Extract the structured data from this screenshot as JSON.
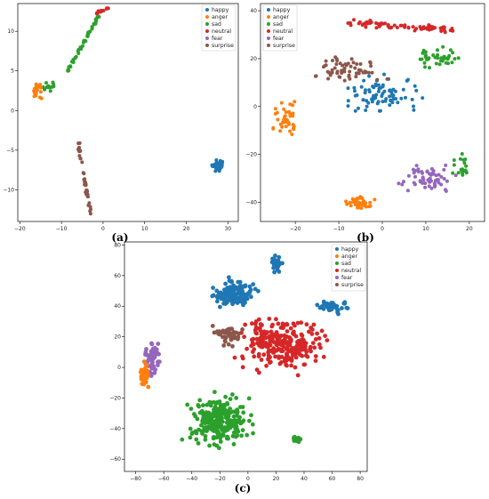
{
  "colors": {
    "happy": "#1f77b4",
    "anger": "#ff7f0e",
    "sad": "#2ca02c",
    "neutral": "#d62728",
    "fear": "#9467bd",
    "surprise": "#8c564b"
  },
  "chart_data": [
    {
      "panel": "(a)",
      "type": "scatter",
      "legend": [
        "happy",
        "anger",
        "sad",
        "neutral",
        "fear",
        "surprise"
      ],
      "legend_placement": "top-right",
      "xlim": [
        -20.5,
        32.5
      ],
      "ylim": [
        -14.0,
        13.5
      ],
      "xticks": [
        -20,
        -10,
        0,
        10,
        20,
        30
      ],
      "yticks": [
        -10,
        -5,
        0,
        5,
        10
      ],
      "clusters": [
        {
          "series": "neutral",
          "type": "line",
          "from": [
            -1.5,
            12.2
          ],
          "to": [
            1.5,
            13.0
          ],
          "n": 14,
          "spread": 0.3
        },
        {
          "series": "sad",
          "type": "line",
          "from": [
            -8.5,
            5.0
          ],
          "to": [
            -1.0,
            12.0
          ],
          "n": 50,
          "spread": 0.3
        },
        {
          "series": "sad",
          "type": "blob",
          "center": [
            -13.0,
            3.0
          ],
          "r": [
            2.0,
            0.8
          ],
          "n": 14
        },
        {
          "series": "anger",
          "type": "blob",
          "center": [
            -16.0,
            2.5
          ],
          "r": [
            1.6,
            1.2
          ],
          "n": 20
        },
        {
          "series": "surprise",
          "type": "line",
          "from": [
            -6.0,
            -4.0
          ],
          "to": [
            -3.0,
            -13.0
          ],
          "n": 40,
          "spread": 0.4
        },
        {
          "series": "happy",
          "type": "blob",
          "center": [
            27.5,
            -7.0
          ],
          "r": [
            2.0,
            0.9
          ],
          "n": 35
        }
      ]
    },
    {
      "panel": "(b)",
      "type": "scatter",
      "legend": [
        "happy",
        "anger",
        "sad",
        "neutral",
        "fear",
        "surprise"
      ],
      "legend_placement": "top-left",
      "xlim": [
        -28.0,
        23.5
      ],
      "ylim": [
        -48.0,
        43.0
      ],
      "xticks": [
        -20,
        -10,
        0,
        10,
        20
      ],
      "yticks": [
        -40,
        -20,
        0,
        20,
        40
      ],
      "clusters": [
        {
          "series": "neutral",
          "type": "line",
          "from": [
            -8.0,
            35.0
          ],
          "to": [
            16.0,
            32.0
          ],
          "n": 70,
          "spread": 2.0
        },
        {
          "series": "sad",
          "type": "blob",
          "center": [
            12.0,
            20.0
          ],
          "r": [
            7.0,
            6.0
          ],
          "n": 40
        },
        {
          "series": "happy",
          "type": "blob",
          "center": [
            0.0,
            5.0
          ],
          "r": [
            12.0,
            10.0
          ],
          "n": 80
        },
        {
          "series": "surprise",
          "type": "blob",
          "center": [
            -8.0,
            15.0
          ],
          "r": [
            10.0,
            8.0
          ],
          "n": 60
        },
        {
          "series": "anger",
          "type": "blob",
          "center": [
            -22.0,
            -5.0
          ],
          "r": [
            4.0,
            10.0
          ],
          "n": 40
        },
        {
          "series": "anger",
          "type": "blob",
          "center": [
            -5.0,
            -40.0
          ],
          "r": [
            5.0,
            4.0
          ],
          "n": 40
        },
        {
          "series": "fear",
          "type": "blob",
          "center": [
            10.0,
            -30.0
          ],
          "r": [
            8.0,
            7.0
          ],
          "n": 60
        },
        {
          "series": "sad",
          "type": "blob",
          "center": [
            18.0,
            -25.0
          ],
          "r": [
            3.0,
            6.0
          ],
          "n": 20
        }
      ]
    },
    {
      "panel": "(c)",
      "type": "scatter",
      "legend": [
        "happy",
        "anger",
        "sad",
        "neutral",
        "fear",
        "surprise"
      ],
      "legend_placement": "top-right",
      "xlim": [
        -88.0,
        85.0
      ],
      "ylim": [
        -68.0,
        82.0
      ],
      "xticks": [
        -80,
        -60,
        -40,
        -20,
        0,
        20,
        40,
        60,
        80
      ],
      "yticks": [
        -60,
        -40,
        -20,
        0,
        20,
        40,
        60,
        80
      ],
      "clusters": [
        {
          "series": "happy",
          "type": "blob",
          "center": [
            -10.0,
            48.0
          ],
          "r": [
            22.0,
            12.0
          ],
          "n": 140
        },
        {
          "series": "happy",
          "type": "blob",
          "center": [
            20.0,
            68.0
          ],
          "r": [
            5.0,
            8.0
          ],
          "n": 30
        },
        {
          "series": "happy",
          "type": "blob",
          "center": [
            60.0,
            40.0
          ],
          "r": [
            15.0,
            6.0
          ],
          "n": 40
        },
        {
          "series": "neutral",
          "type": "blob",
          "center": [
            25.0,
            15.0
          ],
          "r": [
            40.0,
            22.0
          ],
          "n": 260
        },
        {
          "series": "surprise",
          "type": "blob",
          "center": [
            -15.0,
            22.0
          ],
          "r": [
            15.0,
            10.0
          ],
          "n": 40
        },
        {
          "series": "sad",
          "type": "blob",
          "center": [
            -20.0,
            -35.0
          ],
          "r": [
            30.0,
            22.0
          ],
          "n": 260
        },
        {
          "series": "sad",
          "type": "blob",
          "center": [
            35.0,
            -47.0
          ],
          "r": [
            4.0,
            3.0
          ],
          "n": 14
        },
        {
          "series": "fear",
          "type": "blob",
          "center": [
            -68.0,
            5.0
          ],
          "r": [
            8.0,
            14.0
          ],
          "n": 60
        },
        {
          "series": "anger",
          "type": "blob",
          "center": [
            -74.0,
            -5.0
          ],
          "r": [
            4.0,
            12.0
          ],
          "n": 40
        }
      ]
    }
  ]
}
